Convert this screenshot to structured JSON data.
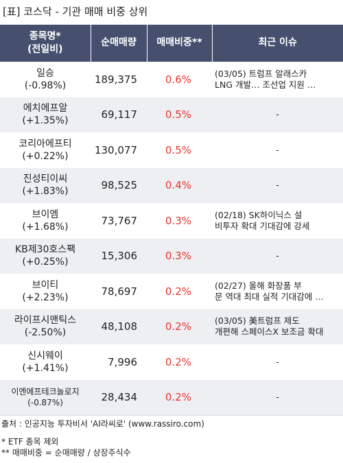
{
  "title": "[표] 코스닥 - 기관 매매 비중 상위",
  "header": {
    "name_line1": "종목명*",
    "name_line2": "(전일비)",
    "volume": "순매매량",
    "ratio": "매매비중**",
    "issue": "최근 이슈"
  },
  "rows": [
    {
      "name": "일승",
      "change": "(-0.98%)",
      "volume": "189,375",
      "ratio": "0.6%",
      "issue_l1": "(03/05) 트럼프 알래스카",
      "issue_l2": "LNG 개발… 조선업 지원 …"
    },
    {
      "name": "에치에프알",
      "change": "(+1.35%)",
      "volume": "69,117",
      "ratio": "0.5%",
      "issue_l1": "-",
      "issue_l2": ""
    },
    {
      "name": "코리아에프티",
      "change": "(+0.22%)",
      "volume": "130,077",
      "ratio": "0.5%",
      "issue_l1": "-",
      "issue_l2": ""
    },
    {
      "name": "진성티이씨",
      "change": "(+1.83%)",
      "volume": "98,525",
      "ratio": "0.4%",
      "issue_l1": "-",
      "issue_l2": ""
    },
    {
      "name": "브이엠",
      "change": "(+1.68%)",
      "volume": "73,767",
      "ratio": "0.3%",
      "issue_l1": "(02/18) SK하이닉스 설",
      "issue_l2": "비투자 확대 기대감에 강세"
    },
    {
      "name": "KB제30호스팩",
      "change": "(+0.25%)",
      "volume": "15,306",
      "ratio": "0.3%",
      "issue_l1": "-",
      "issue_l2": ""
    },
    {
      "name": "브이티",
      "change": "(+2.23%)",
      "volume": "78,697",
      "ratio": "0.2%",
      "issue_l1": "(02/27) 올해 화장품 부",
      "issue_l2": "문 역대 최대 실적 기대감에 …"
    },
    {
      "name": "라이프시맨틱스",
      "change": "(-2.50%)",
      "volume": "48,108",
      "ratio": "0.2%",
      "issue_l1": "(03/05) 美트럼프 제도",
      "issue_l2": "개편해 스페이스X 보조금 확대"
    },
    {
      "name": "신시웨이",
      "change": "(+1.41%)",
      "volume": "7,996",
      "ratio": "0.2%",
      "issue_l1": "-",
      "issue_l2": ""
    },
    {
      "name": "이엔에프테크놀로지",
      "change": "(-0.87%)",
      "volume": "28,434",
      "ratio": "0.2%",
      "issue_l1": "-",
      "issue_l2": ""
    }
  ],
  "footer": {
    "source": "출처 : 인공지능 투자비서 'AI라씨로' (www.rassiro.com)",
    "note1": "* ETF 종목 제외",
    "note2": "** 매매비중 = 순매매량 / 상장주식수"
  },
  "colors": {
    "header_bg": "#46506e",
    "stripe_bg": "#edeff3",
    "ratio_text": "#e8352e"
  }
}
